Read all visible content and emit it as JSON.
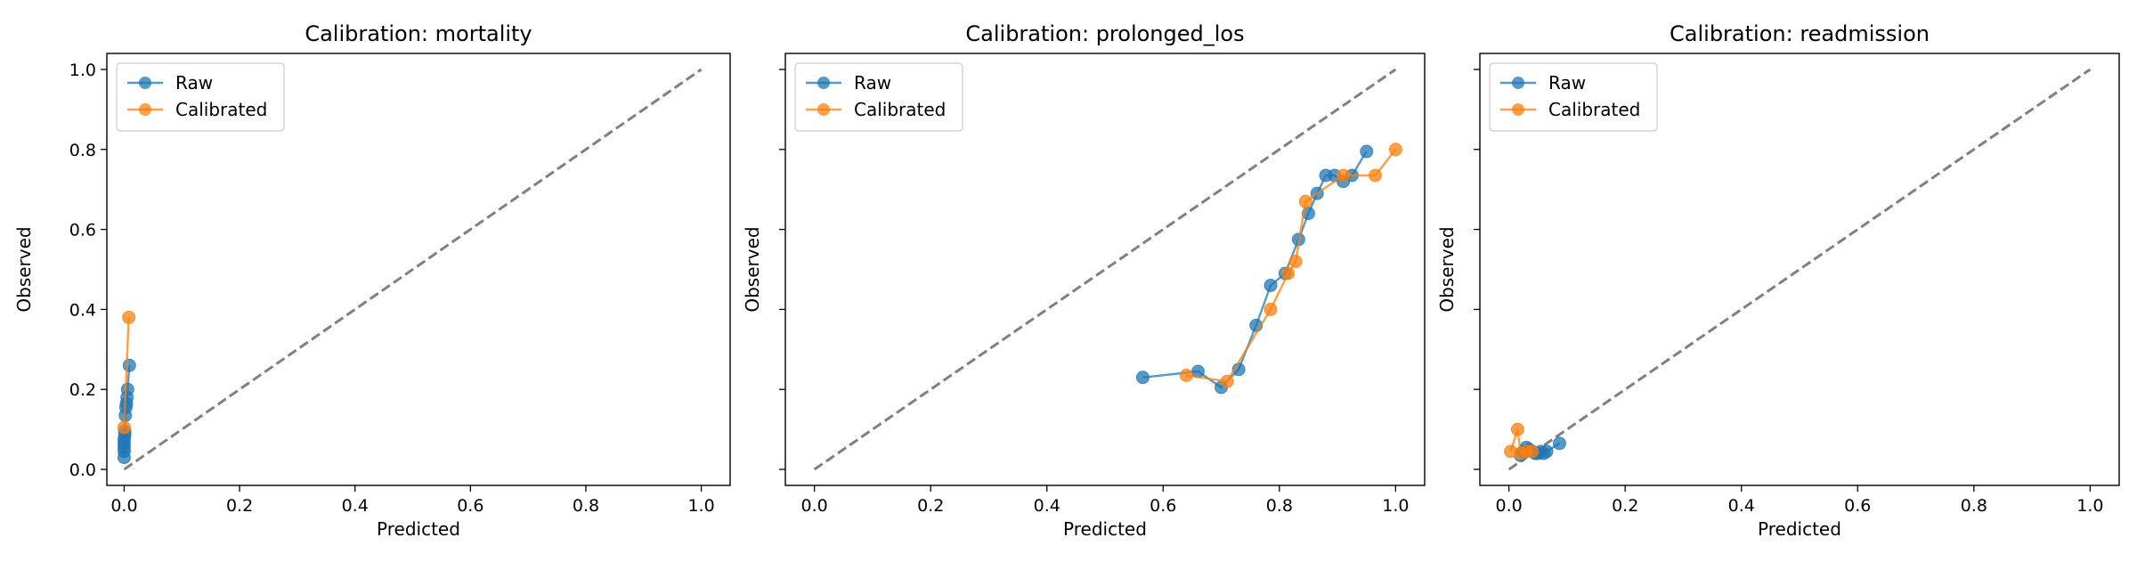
{
  "chart_data": [
    {
      "type": "line",
      "title": "Calibration: mortality",
      "xlabel": "Predicted",
      "ylabel": "Observed",
      "xlim": [
        -0.03,
        1.05
      ],
      "ylim": [
        -0.04,
        1.04
      ],
      "xticks": [
        "0.0",
        "0.2",
        "0.4",
        "0.6",
        "0.8",
        "1.0"
      ],
      "yticks": [
        "0.0",
        "0.2",
        "0.4",
        "0.6",
        "0.8",
        "1.0"
      ],
      "show_yticklabels": true,
      "legend": "top-left",
      "grid": false,
      "reference_line": {
        "x": [
          0,
          1
        ],
        "y": [
          0,
          1
        ],
        "style": "dashed",
        "color": "#808080"
      },
      "series": [
        {
          "name": "Raw",
          "color": "#1f77b4",
          "points": [
            [
              0.0,
              0.03
            ],
            [
              0.0,
              0.045
            ],
            [
              0.0,
              0.055
            ],
            [
              0.0,
              0.065
            ],
            [
              0.0,
              0.075
            ],
            [
              0.001,
              0.085
            ],
            [
              0.001,
              0.095
            ],
            [
              0.002,
              0.135
            ],
            [
              0.003,
              0.155
            ],
            [
              0.004,
              0.165
            ],
            [
              0.005,
              0.18
            ],
            [
              0.006,
              0.2
            ],
            [
              0.009,
              0.26
            ]
          ]
        },
        {
          "name": "Calibrated",
          "color": "#ff7f0e",
          "points": [
            [
              0.0,
              0.105
            ],
            [
              0.008,
              0.38
            ]
          ]
        }
      ]
    },
    {
      "type": "line",
      "title": "Calibration: prolonged_los",
      "xlabel": "Predicted",
      "ylabel": "Observed",
      "xlim": [
        -0.05,
        1.05
      ],
      "ylim": [
        -0.04,
        1.04
      ],
      "xticks": [
        "0.0",
        "0.2",
        "0.4",
        "0.6",
        "0.8",
        "1.0"
      ],
      "yticks": [
        "0.0",
        "0.2",
        "0.4",
        "0.6",
        "0.8",
        "1.0"
      ],
      "show_yticklabels": false,
      "legend": "top-left",
      "grid": false,
      "reference_line": {
        "x": [
          0,
          1
        ],
        "y": [
          0,
          1
        ],
        "style": "dashed",
        "color": "#808080"
      },
      "series": [
        {
          "name": "Raw",
          "color": "#1f77b4",
          "points": [
            [
              0.565,
              0.23
            ],
            [
              0.66,
              0.245
            ],
            [
              0.7,
              0.205
            ],
            [
              0.73,
              0.25
            ],
            [
              0.76,
              0.36
            ],
            [
              0.785,
              0.46
            ],
            [
              0.81,
              0.49
            ],
            [
              0.833,
              0.575
            ],
            [
              0.85,
              0.64
            ],
            [
              0.865,
              0.69
            ],
            [
              0.88,
              0.735
            ],
            [
              0.895,
              0.735
            ],
            [
              0.91,
              0.72
            ],
            [
              0.925,
              0.735
            ],
            [
              0.95,
              0.795
            ]
          ]
        },
        {
          "name": "Calibrated",
          "color": "#ff7f0e",
          "points": [
            [
              0.64,
              0.235
            ],
            [
              0.71,
              0.22
            ],
            [
              0.785,
              0.4
            ],
            [
              0.815,
              0.49
            ],
            [
              0.828,
              0.52
            ],
            [
              0.845,
              0.67
            ],
            [
              0.91,
              0.735
            ],
            [
              0.965,
              0.735
            ],
            [
              1.0,
              0.8
            ]
          ]
        }
      ]
    },
    {
      "type": "line",
      "title": "Calibration: readmission",
      "xlabel": "Predicted",
      "ylabel": "Observed",
      "xlim": [
        -0.05,
        1.05
      ],
      "ylim": [
        -0.04,
        1.04
      ],
      "xticks": [
        "0.0",
        "0.2",
        "0.4",
        "0.6",
        "0.8",
        "1.0"
      ],
      "yticks": [
        "0.0",
        "0.2",
        "0.4",
        "0.6",
        "0.8",
        "1.0"
      ],
      "show_yticklabels": false,
      "legend": "top-left",
      "grid": false,
      "reference_line": {
        "x": [
          0,
          1
        ],
        "y": [
          0,
          1
        ],
        "style": "dashed",
        "color": "#808080"
      },
      "series": [
        {
          "name": "Raw",
          "color": "#1f77b4",
          "points": [
            [
              0.02,
              0.035
            ],
            [
              0.025,
              0.045
            ],
            [
              0.03,
              0.055
            ],
            [
              0.035,
              0.05
            ],
            [
              0.04,
              0.045
            ],
            [
              0.045,
              0.04
            ],
            [
              0.05,
              0.04
            ],
            [
              0.055,
              0.045
            ],
            [
              0.06,
              0.04
            ],
            [
              0.065,
              0.045
            ],
            [
              0.087,
              0.065
            ]
          ]
        },
        {
          "name": "Calibrated",
          "color": "#ff7f0e",
          "points": [
            [
              0.003,
              0.045
            ],
            [
              0.015,
              0.1
            ],
            [
              0.02,
              0.04
            ],
            [
              0.03,
              0.045
            ],
            [
              0.04,
              0.045
            ]
          ]
        }
      ]
    }
  ]
}
